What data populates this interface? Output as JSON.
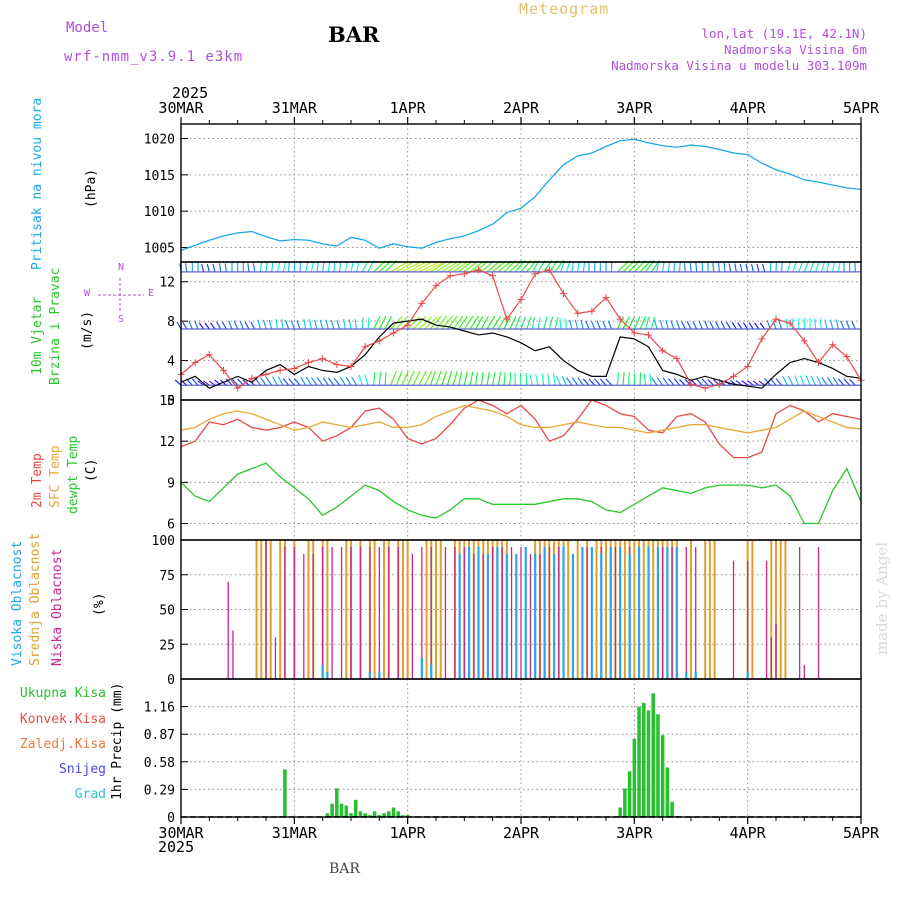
{
  "header": {
    "model_label": "Model",
    "model_run": "wrf-nmm_v3.9.1 e3km",
    "station": "BAR",
    "title": "Meteogram",
    "lonlat": "lon,lat (19.1E, 42.1N)",
    "elevation": "Nadmorska Visina 6m",
    "model_elevation": "Nadmorska Visina u modelu 303.109m",
    "year_top": "2025",
    "year_bottom": "2025",
    "footer_station": "BAR",
    "watermark": "made by Angel"
  },
  "x_axis": {
    "labels": [
      "30MAR",
      "31MAR",
      "1APR",
      "2APR",
      "3APR",
      "4APR",
      "5APR"
    ],
    "range_hours": [
      0,
      144
    ]
  },
  "panel_labels": {
    "pressure": [
      "Pritisak na nivou mora",
      "(hPa)"
    ],
    "wind": [
      "10m Vjetar",
      "Brzina i Pravac",
      "(m/s)"
    ],
    "temp": [
      "2m Temp",
      "SFC Temp",
      "dewpt Temp",
      "(C)"
    ],
    "cloud": [
      "Visoka Oblacnost",
      "Srednja Oblacnost",
      "Niska Oblacnost",
      "(%)"
    ],
    "precip": [
      "1hr Precip (mm)"
    ],
    "precip_legend": [
      "Ukupna Kisa",
      "Konvek.Kisa",
      "Zaledj.Kisa",
      "Snijeg",
      "Grad"
    ],
    "wind_compass": [
      "W",
      "E",
      "N",
      "S"
    ]
  },
  "colors": {
    "pressure": "#1ea8e8",
    "temp2m": "#e84a4a",
    "sfc": "#e8a838",
    "dewpt": "#28c828",
    "high_cloud": "#28a8e8",
    "mid_cloud": "#e0a030",
    "low_cloud": "#c82888",
    "precip": "#28c030",
    "purple": "#b050d8"
  },
  "chart_data": [
    {
      "type": "line",
      "name": "pressure",
      "ylabel": "(hPa)",
      "ylim": [
        1003,
        1022
      ],
      "yticks": [
        1005,
        1010,
        1015,
        1020
      ],
      "x": [
        0,
        3,
        6,
        9,
        12,
        15,
        18,
        21,
        24,
        27,
        30,
        33,
        36,
        39,
        42,
        45,
        48,
        51,
        54,
        57,
        60,
        63,
        66,
        69,
        72,
        75,
        78,
        81,
        84,
        87,
        90,
        93,
        96,
        99,
        102,
        105,
        108,
        111,
        114,
        117,
        120,
        123,
        126,
        129,
        132,
        135,
        138,
        141,
        144
      ],
      "series": [
        {
          "name": "Pritisak na nivou mora",
          "values": [
            1004.6,
            1005.3,
            1006.0,
            1006.6,
            1007.0,
            1007.2,
            1006.5,
            1005.9,
            1006.1,
            1006.0,
            1005.5,
            1005.2,
            1006.4,
            1006.0,
            1004.9,
            1005.5,
            1005.1,
            1004.9,
            1005.7,
            1006.2,
            1006.6,
            1007.3,
            1008.2,
            1009.8,
            1010.4,
            1012.0,
            1014.3,
            1016.4,
            1017.6,
            1018.0,
            1018.9,
            1019.7,
            1019.9,
            1019.4,
            1019.0,
            1018.8,
            1019.1,
            1018.9,
            1018.5,
            1018.0,
            1017.8,
            1016.6,
            1015.7,
            1015.1,
            1014.3,
            1014.0,
            1013.6,
            1013.2,
            1013.0
          ]
        }
      ]
    },
    {
      "type": "line",
      "name": "wind",
      "ylabel": "(m/s)",
      "ylim": [
        0,
        14
      ],
      "yticks": [
        0,
        4,
        8,
        12
      ],
      "barb_levels": [
        1.5,
        7.2,
        13.0
      ],
      "x": [
        0,
        3,
        6,
        9,
        12,
        15,
        18,
        21,
        24,
        27,
        30,
        33,
        36,
        39,
        42,
        45,
        48,
        51,
        54,
        57,
        60,
        63,
        66,
        69,
        72,
        75,
        78,
        81,
        84,
        87,
        90,
        93,
        96,
        99,
        102,
        105,
        108,
        111,
        114,
        117,
        120,
        123,
        126,
        129,
        132,
        135,
        138,
        141,
        144
      ],
      "series": [
        {
          "name": "mean",
          "values": [
            1.8,
            2.4,
            1.2,
            1.8,
            2.4,
            1.8,
            3.0,
            3.6,
            2.6,
            3.4,
            3.0,
            2.8,
            3.4,
            4.6,
            6.4,
            7.8,
            8.0,
            8.2,
            7.6,
            7.4,
            7.0,
            6.6,
            6.8,
            6.4,
            5.8,
            5.0,
            5.4,
            4.0,
            3.0,
            2.4,
            2.4,
            6.4,
            6.2,
            5.4,
            3.0,
            2.6,
            2.0,
            2.4,
            2.0,
            1.6,
            1.4,
            1.2,
            2.6,
            3.8,
            4.2,
            3.8,
            3.2,
            2.4,
            2.2
          ]
        },
        {
          "name": "gust",
          "values": [
            2.6,
            3.8,
            4.6,
            3.0,
            1.2,
            2.2,
            2.6,
            3.0,
            3.2,
            3.8,
            4.2,
            3.6,
            3.4,
            5.4,
            6.0,
            6.8,
            7.6,
            9.8,
            11.6,
            12.6,
            12.8,
            13.2,
            12.6,
            8.2,
            10.2,
            12.8,
            13.2,
            10.8,
            8.8,
            9.0,
            10.4,
            8.2,
            6.8,
            6.6,
            5.0,
            4.2,
            1.6,
            1.2,
            1.6,
            2.4,
            3.4,
            6.2,
            8.2,
            7.8,
            6.0,
            3.8,
            5.6,
            4.4,
            2.0
          ]
        }
      ]
    },
    {
      "type": "line",
      "name": "temperature",
      "ylabel": "(C)",
      "ylim": [
        4.8,
        15
      ],
      "yticks": [
        6,
        9,
        12,
        15
      ],
      "x": [
        0,
        3,
        6,
        9,
        12,
        15,
        18,
        21,
        24,
        27,
        30,
        33,
        36,
        39,
        42,
        45,
        48,
        51,
        54,
        57,
        60,
        63,
        66,
        69,
        72,
        75,
        78,
        81,
        84,
        87,
        90,
        93,
        96,
        99,
        102,
        105,
        108,
        111,
        114,
        117,
        120,
        123,
        126,
        129,
        132,
        135,
        138,
        141,
        144
      ],
      "series": [
        {
          "name": "2m Temp",
          "values": [
            11.6,
            12.0,
            13.4,
            13.2,
            13.6,
            13.0,
            12.8,
            13.0,
            13.4,
            13.0,
            12.0,
            12.4,
            13.0,
            14.2,
            14.4,
            13.6,
            12.2,
            11.8,
            12.2,
            13.2,
            14.4,
            15.0,
            14.6,
            14.0,
            14.6,
            13.6,
            12.0,
            12.4,
            13.6,
            15.0,
            14.6,
            14.0,
            13.8,
            12.8,
            12.6,
            13.8,
            14.0,
            13.4,
            11.8,
            10.8,
            10.8,
            11.2,
            14.0,
            14.6,
            14.2,
            13.4,
            14.0,
            13.8,
            13.6
          ]
        },
        {
          "name": "SFC Temp",
          "values": [
            12.8,
            13.0,
            13.6,
            14.0,
            14.2,
            14.0,
            13.6,
            13.2,
            12.8,
            13.0,
            13.4,
            13.2,
            13.0,
            13.2,
            13.4,
            13.0,
            13.0,
            13.2,
            13.8,
            14.2,
            14.6,
            14.4,
            14.2,
            13.8,
            13.2,
            13.0,
            13.0,
            13.2,
            13.4,
            13.2,
            13.0,
            13.0,
            12.8,
            12.6,
            12.8,
            13.0,
            13.2,
            13.2,
            13.0,
            12.8,
            12.6,
            12.8,
            13.0,
            13.6,
            14.2,
            13.8,
            13.4,
            13.0,
            12.9
          ]
        },
        {
          "name": "dewpt Temp",
          "values": [
            9.0,
            8.0,
            7.6,
            8.6,
            9.6,
            10.0,
            10.4,
            9.4,
            8.6,
            7.8,
            6.6,
            7.2,
            8.0,
            8.8,
            8.4,
            7.6,
            7.0,
            6.6,
            6.4,
            7.0,
            7.8,
            7.8,
            7.4,
            7.4,
            7.4,
            7.4,
            7.6,
            7.8,
            7.8,
            7.6,
            7.0,
            6.8,
            7.4,
            8.0,
            8.6,
            8.4,
            8.2,
            8.6,
            8.8,
            8.8,
            8.8,
            8.6,
            8.8,
            8.0,
            6.0,
            6.0,
            8.4,
            10.0,
            7.6
          ]
        }
      ]
    },
    {
      "type": "bar",
      "name": "cloud",
      "ylabel": "(%)",
      "ylim": [
        0,
        100
      ],
      "yticks": [
        0,
        25,
        50,
        75,
        100
      ],
      "series": [
        {
          "name": "Srednja Oblacnost",
          "x": [
            16,
            17,
            18,
            19,
            21,
            22,
            24,
            27,
            28,
            30,
            31,
            35,
            36,
            38,
            40,
            41,
            43,
            44,
            46,
            47,
            48,
            52,
            53,
            54,
            55,
            58,
            59,
            60,
            61,
            62,
            63,
            64,
            65,
            66,
            67,
            68,
            69,
            75,
            76,
            77,
            78,
            79,
            80,
            81,
            82,
            84,
            86,
            88,
            89,
            90,
            91,
            92,
            93,
            94,
            95,
            96,
            97,
            98,
            99,
            100,
            101,
            102,
            103,
            104,
            105,
            108,
            111,
            112,
            113,
            120,
            121,
            125,
            126,
            127,
            128
          ],
          "values": [
            100,
            100,
            100,
            100,
            100,
            100,
            100,
            100,
            100,
            100,
            100,
            100,
            100,
            100,
            100,
            100,
            100,
            100,
            100,
            100,
            100,
            100,
            100,
            100,
            100,
            100,
            100,
            100,
            100,
            100,
            100,
            100,
            100,
            100,
            100,
            100,
            100,
            100,
            100,
            100,
            100,
            100,
            100,
            100,
            100,
            100,
            100,
            100,
            100,
            100,
            100,
            100,
            100,
            100,
            100,
            100,
            100,
            100,
            100,
            100,
            100,
            100,
            100,
            100,
            100,
            100,
            100,
            100,
            100,
            100,
            100,
            100,
            100,
            100,
            100
          ]
        },
        {
          "name": "Niska Oblacnost",
          "x": [
            10,
            11,
            18,
            20,
            22,
            24,
            26,
            28,
            30,
            32,
            34,
            36,
            38,
            40,
            42,
            44,
            46,
            49,
            51,
            53,
            56,
            58,
            60,
            62,
            64,
            66,
            68,
            70,
            72,
            74,
            76,
            78,
            80,
            83,
            86,
            89,
            92,
            95,
            99,
            102,
            104,
            107,
            109,
            117,
            120,
            124,
            125,
            126,
            131,
            132,
            135
          ],
          "values": [
            70,
            35,
            100,
            30,
            95,
            95,
            90,
            90,
            95,
            95,
            95,
            95,
            95,
            95,
            95,
            95,
            95,
            90,
            95,
            95,
            95,
            95,
            95,
            90,
            90,
            95,
            95,
            95,
            95,
            90,
            90,
            95,
            95,
            90,
            95,
            95,
            95,
            95,
            90,
            95,
            95,
            95,
            95,
            85,
            85,
            85,
            30,
            40,
            95,
            10,
            95
          ]
        },
        {
          "name": "Visoka Oblacnost",
          "x": [
            30,
            31,
            40,
            42,
            51,
            53,
            59,
            61,
            63,
            65,
            67,
            69,
            71,
            73,
            75,
            77,
            79,
            81,
            83,
            85,
            87,
            89,
            91,
            93,
            95,
            97,
            99,
            101,
            103,
            105,
            107,
            109,
            120
          ],
          "values": [
            10,
            5,
            5,
            5,
            15,
            10,
            90,
            95,
            95,
            90,
            95,
            90,
            90,
            95,
            90,
            95,
            90,
            95,
            90,
            95,
            95,
            90,
            95,
            95,
            90,
            95,
            95,
            95,
            95,
            95,
            5,
            5,
            5
          ]
        }
      ]
    },
    {
      "type": "bar",
      "name": "precipitation",
      "ylabel": "1hr Precip (mm)",
      "ylim": [
        0,
        1.45
      ],
      "yticks": [
        0,
        0.29,
        0.58,
        0.87,
        1.16
      ],
      "series": [
        {
          "name": "Ukupna Kisa",
          "x": [
            21,
            22,
            31,
            32,
            33,
            34,
            35,
            36,
            37,
            38,
            39,
            40,
            41,
            42,
            43,
            44,
            45,
            46,
            47,
            48,
            93,
            94,
            95,
            96,
            97,
            98,
            99,
            100,
            101,
            102,
            103,
            104,
            105
          ],
          "values": [
            0.01,
            0.5,
            0.04,
            0.14,
            0.3,
            0.14,
            0.12,
            0.04,
            0.18,
            0.06,
            0.04,
            0.02,
            0.06,
            0.02,
            0.04,
            0.06,
            0.1,
            0.06,
            0.02,
            0.02,
            0.1,
            0.3,
            0.48,
            0.82,
            1.16,
            1.2,
            1.12,
            1.3,
            1.08,
            0.86,
            0.52,
            0.16,
            0.01
          ]
        }
      ]
    }
  ]
}
